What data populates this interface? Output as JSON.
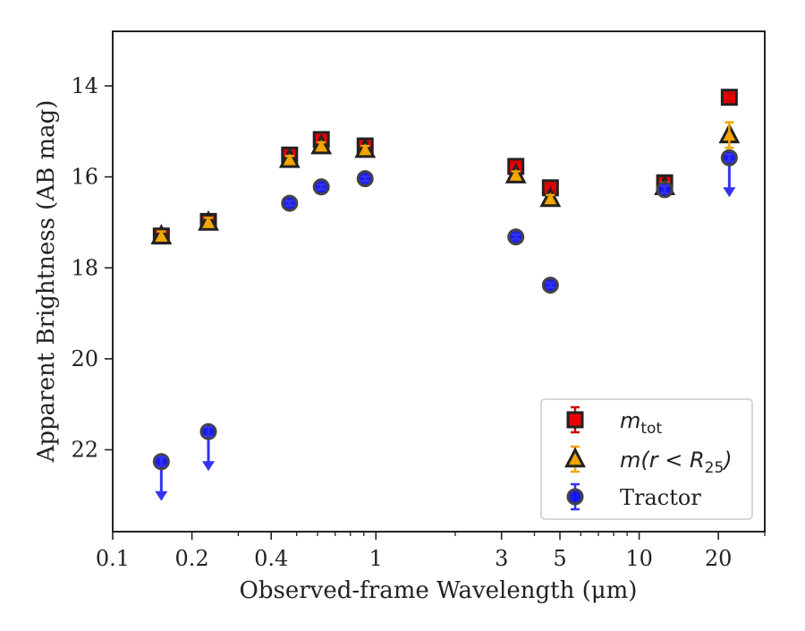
{
  "chart_data": {
    "type": "scatter",
    "xlabel": "Observed-frame Wavelength (μm)",
    "ylabel": "Apparent Brightness (AB mag)",
    "x_scale": "log",
    "y_inverted": true,
    "xlim": [
      0.1,
      30
    ],
    "ylim": [
      23.8,
      12.8
    ],
    "x_ticks": [
      0.1,
      0.2,
      0.4,
      1,
      3,
      5,
      10,
      20
    ],
    "x_tick_labels": [
      "0.1",
      "0.2",
      "0.4",
      "1",
      "3",
      "5",
      "10",
      "20"
    ],
    "y_ticks": [
      14,
      16,
      18,
      20,
      22
    ],
    "y_tick_labels": [
      "14",
      "16",
      "18",
      "20",
      "22"
    ],
    "grid": false,
    "legend_position": "lower-right",
    "series": [
      {
        "name": "m_tot",
        "legend_base": "m",
        "legend_sub": "tot",
        "marker": "square",
        "color": "#ee0000",
        "edge_color": "#222222",
        "errbar_color": "#cc0000",
        "x": [
          0.153,
          0.231,
          0.47,
          0.62,
          0.91,
          3.4,
          4.6,
          12.5,
          22.0
        ],
        "y": [
          17.3,
          16.98,
          15.52,
          15.18,
          15.32,
          15.77,
          16.24,
          16.13,
          14.25
        ],
        "yerr": [
          0.1,
          0.1,
          0.08,
          0.08,
          0.08,
          0.08,
          0.08,
          0.1,
          0.08
        ],
        "upper_limit": [
          false,
          false,
          false,
          false,
          false,
          false,
          false,
          false,
          false
        ]
      },
      {
        "name": "m(r < R_25)",
        "legend_base": "m(r < R",
        "legend_sub": "25",
        "legend_tail": ")",
        "marker": "triangle",
        "color": "#f5a400",
        "edge_color": "#222222",
        "errbar_color": "#f0a500",
        "x": [
          0.153,
          0.231,
          0.47,
          0.62,
          0.91,
          3.4,
          4.6,
          12.5,
          22.0
        ],
        "y": [
          17.3,
          17.0,
          15.62,
          15.32,
          15.4,
          15.96,
          16.48,
          16.22,
          15.08
        ],
        "yerr": [
          0.1,
          0.1,
          0.08,
          0.08,
          0.08,
          0.08,
          0.08,
          0.1,
          0.28
        ],
        "upper_limit": [
          false,
          false,
          false,
          false,
          false,
          false,
          false,
          false,
          false
        ]
      },
      {
        "name": "Tractor",
        "marker": "circle",
        "color": "#1010ee",
        "edge_color": "#444444",
        "errbar_color": "#3333ee",
        "x": [
          0.153,
          0.231,
          0.47,
          0.62,
          0.91,
          3.4,
          4.6,
          12.5,
          22.0
        ],
        "y": [
          22.26,
          21.6,
          16.58,
          16.22,
          16.04,
          17.32,
          18.38,
          16.28,
          15.58
        ],
        "yerr": [
          0.1,
          0.1,
          0.05,
          0.05,
          0.05,
          0.05,
          0.05,
          0.08,
          0.08
        ],
        "upper_limit": [
          true,
          true,
          false,
          false,
          false,
          false,
          false,
          false,
          true
        ]
      }
    ]
  }
}
